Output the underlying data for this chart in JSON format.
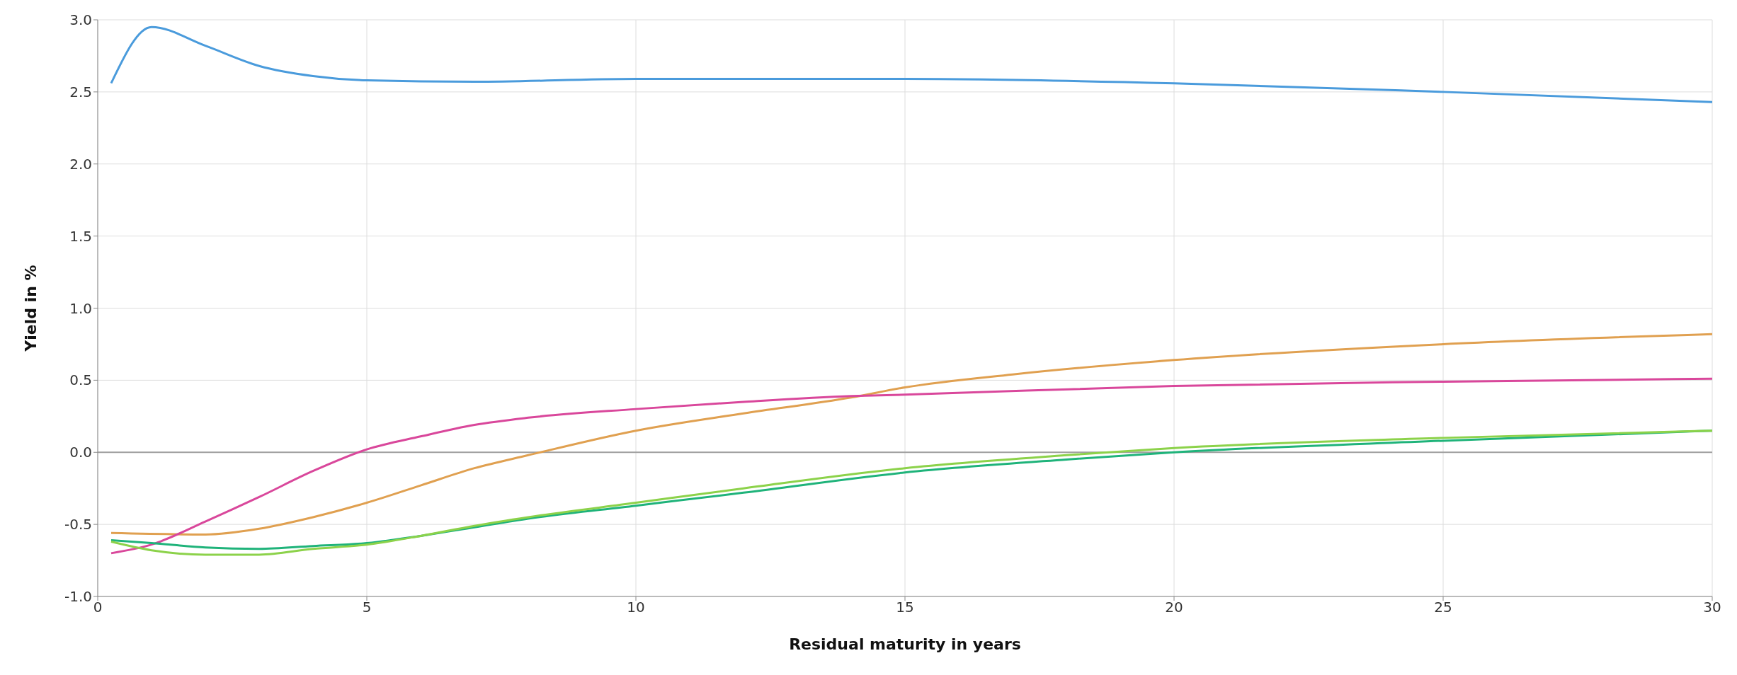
{
  "chart_data": {
    "type": "line",
    "xlabel": "Residual maturity in years",
    "ylabel": "Yield in %",
    "xlim": [
      0,
      30
    ],
    "xticks": [
      0,
      5,
      10,
      15,
      20,
      25,
      30
    ],
    "ylim": [
      -1,
      3
    ],
    "yticks": [
      {
        "value": -1,
        "label": "-1.0"
      },
      {
        "value": -0.5,
        "label": "-0.5"
      },
      {
        "value": 0,
        "label": "0.0"
      },
      {
        "value": 0.5,
        "label": "0.5"
      },
      {
        "value": 1,
        "label": "1.0"
      },
      {
        "value": 1.5,
        "label": "1.5"
      },
      {
        "value": 2,
        "label": "2.0"
      },
      {
        "value": 2.5,
        "label": "2.5"
      },
      {
        "value": 3,
        "label": "3.0"
      }
    ],
    "grid": true,
    "marker": "none",
    "line_style": "solid",
    "ref_lines": [
      {
        "axis": "y",
        "value": 0,
        "color": "#a0a0a0"
      }
    ],
    "series": [
      {
        "color": "#4a9bdc",
        "x": [
          0.25,
          1,
          2,
          3,
          4,
          5,
          7,
          10,
          15,
          20,
          25,
          30
        ],
        "values": [
          2.56,
          2.95,
          2.82,
          2.68,
          2.61,
          2.58,
          2.57,
          2.59,
          2.59,
          2.56,
          2.5,
          2.43
        ]
      },
      {
        "color": "#e0a050",
        "x": [
          0.25,
          2,
          3,
          4,
          5,
          6,
          7,
          8,
          10,
          12,
          14,
          15,
          17,
          20,
          25,
          30
        ],
        "values": [
          -0.56,
          -0.57,
          -0.53,
          -0.45,
          -0.35,
          -0.23,
          -0.11,
          -0.02,
          0.15,
          0.27,
          0.38,
          0.45,
          0.54,
          0.64,
          0.75,
          0.82
        ]
      },
      {
        "color": "#d9479b",
        "x": [
          0.25,
          1,
          2,
          3,
          4,
          5,
          6,
          7,
          8,
          10,
          12,
          14,
          15,
          20,
          25,
          30
        ],
        "values": [
          -0.7,
          -0.64,
          -0.48,
          -0.31,
          -0.13,
          0.02,
          0.11,
          0.19,
          0.24,
          0.3,
          0.35,
          0.39,
          0.4,
          0.46,
          0.49,
          0.51
        ]
      },
      {
        "color": "#1fb37a",
        "x": [
          0.25,
          1,
          2,
          3,
          4,
          5,
          6,
          7,
          8,
          10,
          12,
          15,
          18,
          20,
          25,
          30
        ],
        "values": [
          -0.61,
          -0.63,
          -0.66,
          -0.67,
          -0.65,
          -0.63,
          -0.58,
          -0.52,
          -0.46,
          -0.37,
          -0.28,
          -0.14,
          -0.05,
          0,
          0.08,
          0.15
        ]
      },
      {
        "color": "#8cd24a",
        "x": [
          0.25,
          1,
          2,
          3,
          4,
          5,
          6,
          7,
          8,
          10,
          12,
          15,
          18,
          20,
          25,
          30
        ],
        "values": [
          -0.62,
          -0.68,
          -0.71,
          -0.71,
          -0.67,
          -0.64,
          -0.58,
          -0.51,
          -0.45,
          -0.35,
          -0.25,
          -0.11,
          -0.02,
          0.03,
          0.1,
          0.15
        ]
      }
    ]
  }
}
